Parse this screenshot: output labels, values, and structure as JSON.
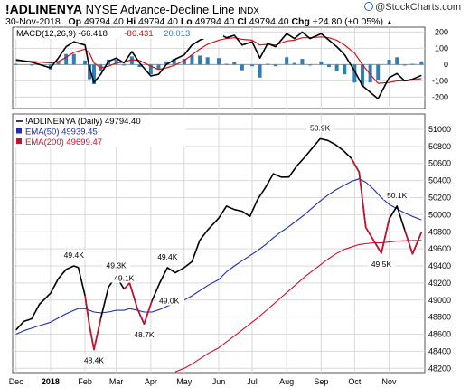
{
  "header": {
    "symbol": "!ADLINENYA",
    "name": "NYSE Advance-Decline Line",
    "exchange": "INDX",
    "date": "30-Nov-2018",
    "open_label": "Op",
    "open": "49794.40",
    "high_label": "Hi",
    "high": "49794.40",
    "low_label": "Lo",
    "low": "49794.40",
    "close_label": "Cl",
    "close": "49794.40",
    "change_label": "Chg",
    "change": "+24.80 (+0.05%)",
    "trend_glyph": "▲",
    "brand": "@StockCharts.com"
  },
  "colors": {
    "price": "#000000",
    "ema50": "#1f2fa8",
    "ema200": "#c8102e",
    "macd": "#000000",
    "signal": "#d21414",
    "histogram": "#2e7fb5",
    "grid": "#d9d9d9",
    "brand": "#2a66c9"
  },
  "chart_data": [
    {
      "type": "line",
      "panel": "MACD",
      "legend": [
        {
          "label": "MACD(12,26,9)",
          "value": "-66.418",
          "color": "#000000"
        },
        {
          "label": "",
          "value": "-86.431",
          "color": "#d21414"
        },
        {
          "label": "",
          "value": "20.013",
          "color": "#2e7fb5"
        }
      ],
      "ylim": [
        -270,
        230
      ],
      "y_ticks": [
        "200",
        "100",
        "0",
        "-100",
        "-200"
      ],
      "x_ticks": [
        "Dec",
        "2018",
        "Feb",
        "Mar",
        "Apr",
        "May",
        "Jun",
        "Jul",
        "Aug",
        "Sep",
        "Oct",
        "Nov"
      ],
      "x": [
        "2017-12-01",
        "2017-12-15",
        "2018-01-01",
        "2018-01-08",
        "2018-01-15",
        "2018-01-22",
        "2018-02-01",
        "2018-02-05",
        "2018-02-09",
        "2018-02-15",
        "2018-02-22",
        "2018-03-01",
        "2018-03-08",
        "2018-03-15",
        "2018-03-22",
        "2018-04-01",
        "2018-04-08",
        "2018-04-15",
        "2018-04-22",
        "2018-05-01",
        "2018-05-08",
        "2018-05-15",
        "2018-05-22",
        "2018-06-01",
        "2018-06-08",
        "2018-06-15",
        "2018-06-22",
        "2018-07-01",
        "2018-07-08",
        "2018-07-15",
        "2018-07-22",
        "2018-08-01",
        "2018-08-08",
        "2018-08-15",
        "2018-08-22",
        "2018-09-01",
        "2018-09-08",
        "2018-09-15",
        "2018-09-22",
        "2018-10-01",
        "2018-10-08",
        "2018-10-15",
        "2018-10-22",
        "2018-11-01",
        "2018-11-08",
        "2018-11-15",
        "2018-11-22",
        "2018-11-30"
      ],
      "series": [
        {
          "name": "MACD(12,26,9)",
          "values": [
            30,
            15,
            -20,
            40,
            110,
            140,
            120,
            -20,
            -110,
            -60,
            20,
            40,
            10,
            80,
            10,
            -70,
            -60,
            0,
            30,
            60,
            120,
            150,
            170,
            190,
            165,
            180,
            120,
            140,
            40,
            130,
            110,
            190,
            160,
            200,
            160,
            190,
            150,
            110,
            60,
            -40,
            -130,
            -170,
            -210,
            -80,
            -55,
            -100,
            -90,
            -66
          ]
        },
        {
          "name": "",
          "values": [
            25,
            20,
            10,
            18,
            45,
            75,
            95,
            70,
            10,
            -20,
            -10,
            10,
            15,
            30,
            25,
            -10,
            -30,
            -20,
            -5,
            25,
            60,
            95,
            125,
            150,
            160,
            165,
            155,
            150,
            120,
            125,
            120,
            145,
            150,
            165,
            165,
            170,
            165,
            150,
            120,
            70,
            0,
            -60,
            -115,
            -110,
            -100,
            -100,
            -95,
            -86
          ]
        },
        {
          "name": "",
          "values": [
            5,
            -5,
            -30,
            22,
            65,
            65,
            25,
            -90,
            -120,
            -40,
            30,
            30,
            -5,
            50,
            -15,
            -60,
            -30,
            20,
            35,
            35,
            60,
            55,
            45,
            40,
            5,
            15,
            -35,
            -10,
            -80,
            5,
            -10,
            45,
            10,
            35,
            -5,
            20,
            -15,
            -40,
            -60,
            -110,
            -130,
            -110,
            -95,
            30,
            45,
            0,
            5,
            20
          ]
        }
      ]
    },
    {
      "type": "line",
      "panel": "price",
      "legend": [
        {
          "label": "!ADLINENYA (Daily)",
          "value": "49794.40",
          "color": "#000000"
        },
        {
          "label": "EMA(50)",
          "value": "49939.45",
          "color": "#1f2fa8"
        },
        {
          "label": "EMA(200)",
          "value": "49699.47",
          "color": "#c8102e"
        }
      ],
      "ylim": [
        48150,
        51180
      ],
      "y_ticks": [
        "51000",
        "50800",
        "50600",
        "50400",
        "50200",
        "50000",
        "49800",
        "49600",
        "49400",
        "49200",
        "49000",
        "48800",
        "48600",
        "48400",
        "48200"
      ],
      "x_ticks": [
        "Dec",
        "2018",
        "Feb",
        "Mar",
        "Apr",
        "May",
        "Jun",
        "Jul",
        "Aug",
        "Sep",
        "Oct",
        "Nov"
      ],
      "x": [
        "2017-12-01",
        "2017-12-08",
        "2017-12-15",
        "2017-12-22",
        "2018-01-01",
        "2018-01-08",
        "2018-01-15",
        "2018-01-22",
        "2018-01-26",
        "2018-02-01",
        "2018-02-05",
        "2018-02-09",
        "2018-02-15",
        "2018-02-22",
        "2018-03-01",
        "2018-03-08",
        "2018-03-13",
        "2018-03-20",
        "2018-03-26",
        "2018-04-02",
        "2018-04-09",
        "2018-04-16",
        "2018-04-23",
        "2018-05-01",
        "2018-05-08",
        "2018-05-15",
        "2018-05-22",
        "2018-06-01",
        "2018-06-08",
        "2018-06-15",
        "2018-06-22",
        "2018-06-29",
        "2018-07-06",
        "2018-07-13",
        "2018-07-20",
        "2018-07-27",
        "2018-08-03",
        "2018-08-10",
        "2018-08-17",
        "2018-08-24",
        "2018-08-31",
        "2018-09-07",
        "2018-09-14",
        "2018-09-21",
        "2018-09-28",
        "2018-10-05",
        "2018-10-11",
        "2018-10-18",
        "2018-10-25",
        "2018-11-01",
        "2018-11-08",
        "2018-11-15",
        "2018-11-22",
        "2018-11-30"
      ],
      "series": [
        {
          "name": "!ADLINENYA (Daily)",
          "values": [
            48650,
            48750,
            48780,
            48950,
            49080,
            49250,
            49360,
            49400,
            49380,
            49050,
            48700,
            48420,
            48780,
            49150,
            49280,
            49130,
            49200,
            48900,
            48720,
            48990,
            49200,
            49380,
            49320,
            49380,
            49450,
            49700,
            49820,
            49960,
            50100,
            50060,
            50040,
            49980,
            50180,
            50320,
            50480,
            50440,
            50440,
            50570,
            50670,
            50780,
            50890,
            50870,
            50820,
            50750,
            50660,
            50500,
            49850,
            49700,
            49550,
            49950,
            50100,
            49820,
            49540,
            49794
          ]
        },
        {
          "name": "EMA(50)",
          "values": [
            48600,
            48640,
            48670,
            48700,
            48740,
            48790,
            48840,
            48880,
            48900,
            48900,
            48880,
            48860,
            48850,
            48860,
            48880,
            48880,
            48900,
            48880,
            48860,
            48860,
            48890,
            48930,
            48960,
            49000,
            49050,
            49110,
            49170,
            49240,
            49330,
            49400,
            49460,
            49520,
            49580,
            49650,
            49730,
            49800,
            49860,
            49930,
            50000,
            50080,
            50160,
            50230,
            50290,
            50340,
            50390,
            50420,
            50380,
            50300,
            50200,
            50120,
            50070,
            50020,
            49980,
            49939
          ]
        },
        {
          "name": "EMA(200)",
          "values": [
            null,
            null,
            null,
            null,
            null,
            null,
            null,
            null,
            null,
            null,
            null,
            null,
            null,
            null,
            null,
            null,
            null,
            null,
            null,
            null,
            null,
            null,
            48160,
            48200,
            48250,
            48310,
            48370,
            48440,
            48510,
            48580,
            48650,
            48720,
            48790,
            48870,
            48950,
            49030,
            49110,
            49190,
            49270,
            49340,
            49410,
            49480,
            49540,
            49590,
            49620,
            49650,
            49660,
            49670,
            49670,
            49680,
            49690,
            49695,
            49698,
            49699
          ]
        }
      ],
      "annotations": [
        {
          "label": "49.4K",
          "x": "2018-01-22",
          "y": 49400,
          "pos": "above"
        },
        {
          "label": "48.4K",
          "x": "2018-02-09",
          "y": 48420,
          "pos": "below"
        },
        {
          "label": "49.1K",
          "x": "2018-03-08",
          "y": 49130,
          "pos": "above"
        },
        {
          "label": "49.3K",
          "x": "2018-03-01",
          "y": 49280,
          "pos": "above"
        },
        {
          "label": "48.7K",
          "x": "2018-03-26",
          "y": 48720,
          "pos": "below"
        },
        {
          "label": "49.0K",
          "x": "2018-04-02",
          "y": 48990,
          "pos": "right"
        },
        {
          "label": "49.4K",
          "x": "2018-04-16",
          "y": 49380,
          "pos": "above"
        },
        {
          "label": "50.9K",
          "x": "2018-08-31",
          "y": 50890,
          "pos": "above"
        },
        {
          "label": "50.1K",
          "x": "2018-11-08",
          "y": 50100,
          "pos": "above"
        },
        {
          "label": "49.5K",
          "x": "2018-10-25",
          "y": 49550,
          "pos": "below"
        }
      ]
    }
  ]
}
